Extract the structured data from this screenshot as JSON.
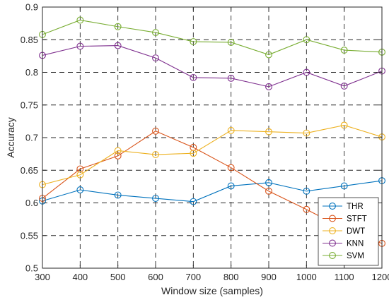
{
  "chart_data": {
    "type": "line",
    "title": "",
    "xlabel": "Window size (samples)",
    "ylabel": "Accuracy",
    "x": [
      300,
      400,
      500,
      600,
      700,
      800,
      900,
      1000,
      1100,
      1200
    ],
    "xlim": [
      300,
      1200
    ],
    "ylim": [
      0.5,
      0.9
    ],
    "xticks": [
      300,
      400,
      500,
      600,
      700,
      800,
      900,
      1000,
      1100,
      1200
    ],
    "yticks": [
      0.5,
      0.55,
      0.6,
      0.65,
      0.7,
      0.75,
      0.8,
      0.85,
      0.9
    ],
    "ytick_labels": [
      "0.5",
      "0.55",
      "0.6",
      "0.65",
      "0.7",
      "0.75",
      "0.8",
      "0.85",
      "0.9"
    ],
    "grid": true,
    "legend_position": "bottom-right",
    "series": [
      {
        "name": "THR",
        "color": "#0072BD",
        "marker": "circle",
        "values": [
          0.603,
          0.62,
          0.612,
          0.607,
          0.602,
          0.626,
          0.631,
          0.618,
          0.626,
          0.634
        ]
      },
      {
        "name": "STFT",
        "color": "#D95319",
        "marker": "circle",
        "values": [
          0.607,
          0.652,
          0.672,
          0.71,
          0.685,
          0.654,
          0.618,
          0.59,
          0.56,
          0.538
        ]
      },
      {
        "name": "DWT",
        "color": "#EDB120",
        "marker": "circle",
        "values": [
          0.628,
          0.643,
          0.68,
          0.674,
          0.676,
          0.711,
          0.709,
          0.707,
          0.719,
          0.701
        ]
      },
      {
        "name": "KNN",
        "color": "#7E2F8E",
        "marker": "circle",
        "values": [
          0.826,
          0.84,
          0.841,
          0.822,
          0.792,
          0.791,
          0.778,
          0.8,
          0.779,
          0.802
        ]
      },
      {
        "name": "SVM",
        "color": "#77AC30",
        "marker": "circle",
        "values": [
          0.858,
          0.88,
          0.87,
          0.861,
          0.847,
          0.846,
          0.827,
          0.85,
          0.834,
          0.831
        ]
      }
    ]
  }
}
